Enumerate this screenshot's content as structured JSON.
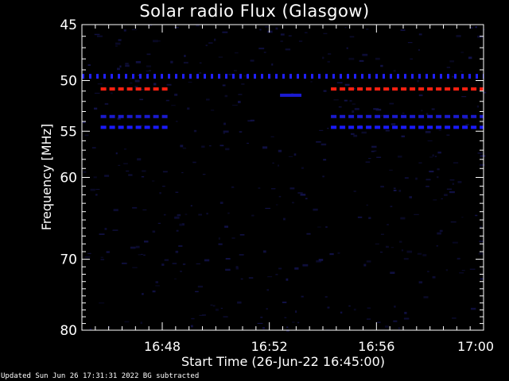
{
  "chart_data": {
    "type": "heatmap",
    "title": "Solar radio Flux (Glasgow)",
    "xlabel": "Start Time (26-Jun-22 16:45:00)",
    "ylabel": "Frequency [MHz]",
    "xlim": [
      "16:45",
      "17:00"
    ],
    "ylim": [
      45,
      80
    ],
    "y_scale": "log",
    "y_inverted": true,
    "x_ticks": [
      "16:48",
      "16:52",
      "16:56",
      "17:00"
    ],
    "x_tick_minutes": [
      3,
      7,
      11,
      15
    ],
    "y_ticks": [
      45,
      50,
      55,
      60,
      70,
      80
    ],
    "y_tick_labels": [
      "45",
      "50",
      "55",
      "60",
      "70",
      "80"
    ],
    "colors": {
      "background": "#000000",
      "faint": "#0a0a3a",
      "strong_blue": "#1a1aff",
      "hot": "#ff2010"
    },
    "features": [
      {
        "kind": "dashed_line",
        "freq_mhz": 49.6,
        "minute_range": [
          0,
          15
        ],
        "color": "#2020ff",
        "intensity": "medium"
      },
      {
        "kind": "dashed_line",
        "freq_mhz": 50.8,
        "minute_range": [
          0.7,
          3.2
        ],
        "color": "#ff2010",
        "intensity": "high"
      },
      {
        "kind": "dashed_line",
        "freq_mhz": 50.8,
        "minute_range": [
          9.3,
          15
        ],
        "color": "#ff2010",
        "intensity": "high"
      },
      {
        "kind": "dashed_line",
        "freq_mhz": 53.5,
        "minute_range": [
          0.7,
          3.2
        ],
        "color": "#1a1acc",
        "intensity": "medium"
      },
      {
        "kind": "dashed_line",
        "freq_mhz": 53.5,
        "minute_range": [
          9.3,
          15
        ],
        "color": "#1a1acc",
        "intensity": "medium"
      },
      {
        "kind": "dashed_line",
        "freq_mhz": 54.6,
        "minute_range": [
          0.7,
          3.2
        ],
        "color": "#1a1aff",
        "intensity": "high"
      },
      {
        "kind": "dashed_line",
        "freq_mhz": 54.6,
        "minute_range": [
          9.3,
          15
        ],
        "color": "#1a1aff",
        "intensity": "high"
      },
      {
        "kind": "patch",
        "freq_mhz": 51.4,
        "minute_range": [
          7.4,
          8.2
        ],
        "color": "#1a1ad0",
        "intensity": "medium"
      }
    ]
  },
  "footer": {
    "updated": "Updated Sun Jun 26 17:31:31 2022   BG subtracted"
  }
}
